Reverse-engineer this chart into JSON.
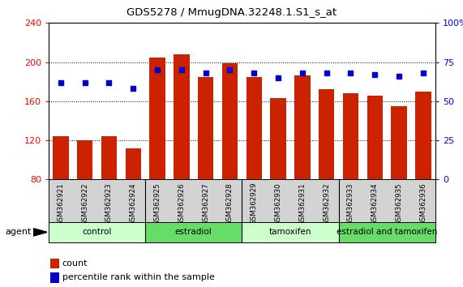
{
  "title": "GDS5278 / MmugDNA.32248.1.S1_s_at",
  "samples": [
    "GSM362921",
    "GSM362922",
    "GSM362923",
    "GSM362924",
    "GSM362925",
    "GSM362926",
    "GSM362927",
    "GSM362928",
    "GSM362929",
    "GSM362930",
    "GSM362931",
    "GSM362932",
    "GSM362933",
    "GSM362934",
    "GSM362935",
    "GSM362936"
  ],
  "counts": [
    124,
    120,
    124,
    112,
    205,
    208,
    185,
    199,
    185,
    163,
    186,
    172,
    168,
    166,
    155,
    170
  ],
  "percentile_ranks": [
    62,
    62,
    62,
    58,
    70,
    70,
    68,
    70,
    68,
    65,
    68,
    68,
    68,
    67,
    66,
    68
  ],
  "groups": [
    {
      "label": "control",
      "start": 0,
      "end": 4,
      "color": "#ccffcc"
    },
    {
      "label": "estradiol",
      "start": 4,
      "end": 8,
      "color": "#66dd66"
    },
    {
      "label": "tamoxifen",
      "start": 8,
      "end": 12,
      "color": "#ccffcc"
    },
    {
      "label": "estradiol and tamoxifen",
      "start": 12,
      "end": 16,
      "color": "#66dd66"
    }
  ],
  "bar_color": "#cc2200",
  "dot_color": "#0000cc",
  "ylim_left": [
    80,
    240
  ],
  "ylim_right": [
    0,
    100
  ],
  "yticks_left": [
    80,
    120,
    160,
    200,
    240
  ],
  "yticks_right": [
    0,
    25,
    50,
    75,
    100
  ],
  "ytick_labels_right": [
    "0",
    "25",
    "50",
    "75",
    "100%"
  ],
  "background_color": "#ffffff",
  "plot_bg_color": "#ffffff",
  "xlabel_area_color": "#d3d3d3",
  "agent_label": "agent"
}
